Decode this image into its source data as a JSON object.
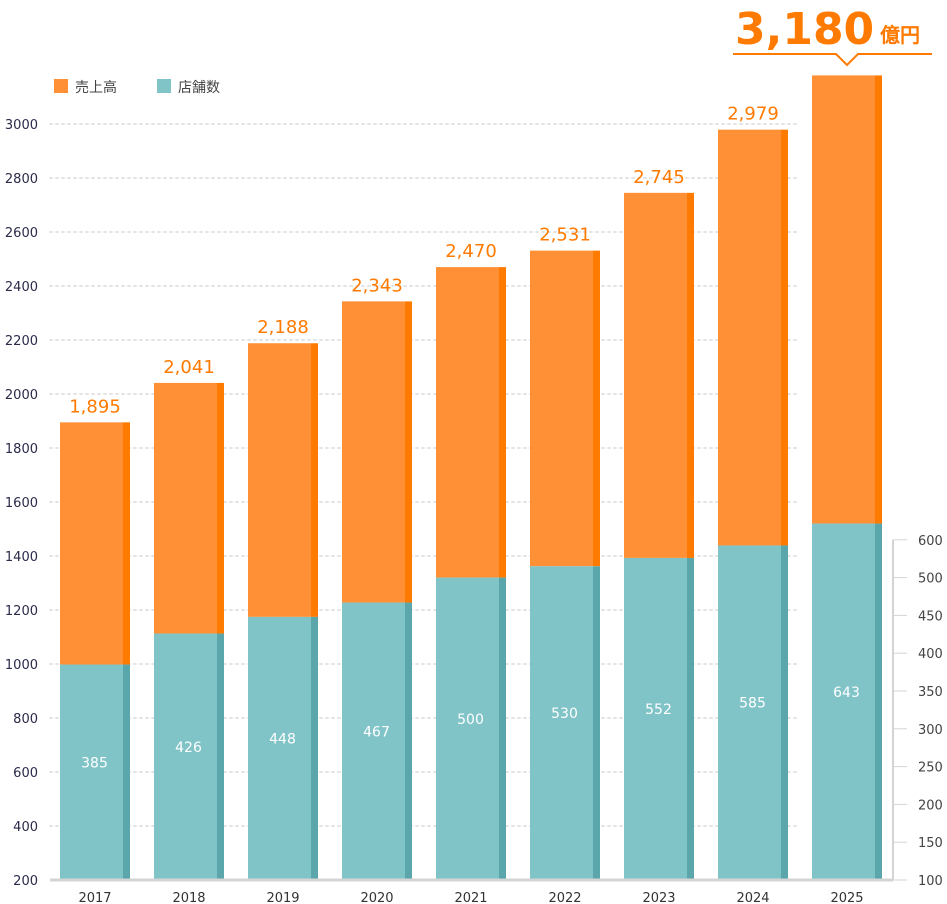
{
  "chart_data": {
    "type": "bar",
    "title": "",
    "categories": [
      "2017",
      "2018",
      "2019",
      "2020",
      "2021",
      "2022",
      "2023",
      "2024",
      "2025"
    ],
    "series": [
      {
        "name": "売上高",
        "axis": "left",
        "color": "#ff9035",
        "edge_color": "#ff7a00",
        "values": [
          1895,
          2041,
          2188,
          2343,
          2470,
          2531,
          2745,
          2979,
          3180
        ],
        "labels": [
          "1,895",
          "2,041",
          "2,188",
          "2,343",
          "2,470",
          "2,531",
          "2,745",
          "2,979",
          ""
        ]
      },
      {
        "name": "店舗数",
        "axis": "right",
        "color": "#80c4c8",
        "edge_color": "#5ba6ab",
        "values": [
          385,
          426,
          448,
          467,
          500,
          530,
          552,
          585,
          643
        ],
        "labels": [
          "385",
          "426",
          "448",
          "467",
          "500",
          "530",
          "552",
          "585",
          "643"
        ]
      }
    ],
    "left_axis": {
      "ticks": [
        200,
        400,
        600,
        800,
        1000,
        1200,
        1400,
        1600,
        1800,
        2000,
        2200,
        2400,
        2600,
        2800,
        3000
      ],
      "ylim": [
        200,
        3000
      ],
      "grid": true
    },
    "right_axis": {
      "ticks": [
        100,
        150,
        200,
        250,
        300,
        350,
        400,
        450,
        500,
        600
      ],
      "ylim": [
        100,
        600
      ]
    },
    "legend": {
      "position": "top-left",
      "items": [
        {
          "label": "売上高",
          "color": "#ff9035"
        },
        {
          "label": "店舗数",
          "color": "#80c4c8"
        }
      ]
    },
    "highlight": {
      "value": "3,180",
      "unit": "億円",
      "category": "2025"
    }
  }
}
